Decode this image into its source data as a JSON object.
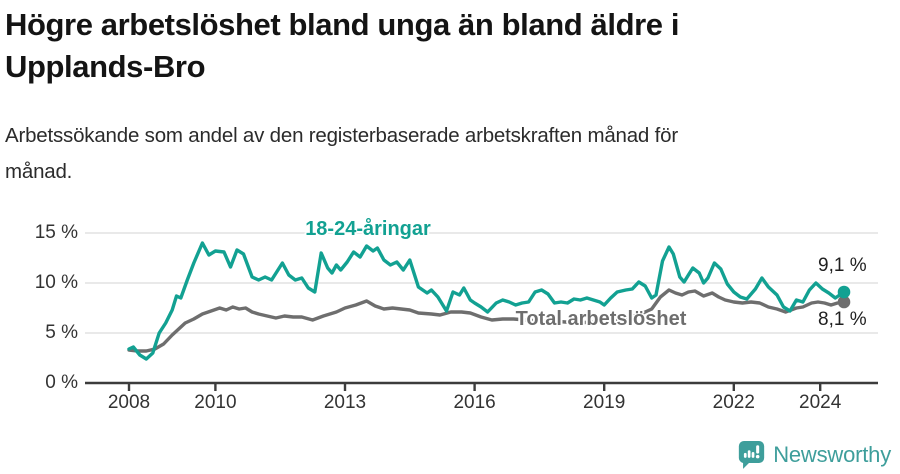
{
  "title": {
    "lines": [
      "Högre arbetslöshet bland unga än bland äldre i",
      "Upplands-Bro"
    ]
  },
  "subtitle": {
    "lines": [
      "Arbetssökande som andel av den registerbaserade arbetskraften månad för",
      "månad."
    ]
  },
  "chart_data": {
    "type": "line",
    "title": "Högre arbetslöshet bland unga än bland äldre i Upplands-Bro",
    "subtitle": "Arbetssökande som andel av den registerbaserade arbetskraften månad för månad.",
    "unit": "%",
    "grid": true,
    "legend_position": "inline-labels-on-lines",
    "x_axis": {
      "range": [
        2007.95,
        2025.35
      ],
      "ticks": [
        {
          "label": "2008",
          "year": 2008
        },
        {
          "label": "2010",
          "year": 2010
        },
        {
          "label": "2013",
          "year": 2013
        },
        {
          "label": "2016",
          "year": 2016
        },
        {
          "label": "2019",
          "year": 2019
        },
        {
          "label": "2022",
          "year": 2022
        },
        {
          "label": "2024",
          "year": 2024
        }
      ]
    },
    "y_axis": {
      "range": [
        0,
        15.5
      ],
      "ticks": [
        {
          "label": "0 %",
          "value": 0
        },
        {
          "label": "5 %",
          "value": 5
        },
        {
          "label": "10 %",
          "value": 10
        },
        {
          "label": "15 %",
          "value": 15
        }
      ]
    },
    "series": [
      {
        "name": "18-24-åringar",
        "color": "#12A192",
        "end_label": "9,1 %",
        "end_value": 9.1,
        "points": [
          [
            2008.0,
            3.4
          ],
          [
            2008.1,
            3.6
          ],
          [
            2008.25,
            2.8
          ],
          [
            2008.4,
            2.4
          ],
          [
            2008.55,
            3.0
          ],
          [
            2008.7,
            5.0
          ],
          [
            2008.85,
            6.0
          ],
          [
            2009.0,
            7.3
          ],
          [
            2009.1,
            8.7
          ],
          [
            2009.2,
            8.5
          ],
          [
            2009.35,
            10.3
          ],
          [
            2009.5,
            12.0
          ],
          [
            2009.7,
            14.0
          ],
          [
            2009.85,
            12.8
          ],
          [
            2010.0,
            13.2
          ],
          [
            2010.2,
            13.1
          ],
          [
            2010.35,
            11.6
          ],
          [
            2010.5,
            13.3
          ],
          [
            2010.65,
            12.9
          ],
          [
            2010.85,
            10.6
          ],
          [
            2011.0,
            10.3
          ],
          [
            2011.15,
            10.6
          ],
          [
            2011.3,
            10.3
          ],
          [
            2011.55,
            12.0
          ],
          [
            2011.7,
            10.8
          ],
          [
            2011.85,
            10.3
          ],
          [
            2012.0,
            10.5
          ],
          [
            2012.15,
            9.5
          ],
          [
            2012.3,
            9.1
          ],
          [
            2012.45,
            13.0
          ],
          [
            2012.6,
            11.5
          ],
          [
            2012.7,
            11.0
          ],
          [
            2012.8,
            11.8
          ],
          [
            2012.9,
            11.3
          ],
          [
            2013.05,
            12.1
          ],
          [
            2013.2,
            13.1
          ],
          [
            2013.35,
            12.6
          ],
          [
            2013.5,
            13.7
          ],
          [
            2013.65,
            13.2
          ],
          [
            2013.75,
            13.5
          ],
          [
            2013.9,
            12.3
          ],
          [
            2014.05,
            11.8
          ],
          [
            2014.2,
            12.1
          ],
          [
            2014.35,
            11.3
          ],
          [
            2014.5,
            12.3
          ],
          [
            2014.7,
            9.6
          ],
          [
            2014.9,
            9.0
          ],
          [
            2015.0,
            9.3
          ],
          [
            2015.15,
            8.6
          ],
          [
            2015.35,
            7.2
          ],
          [
            2015.5,
            9.1
          ],
          [
            2015.65,
            8.8
          ],
          [
            2015.75,
            9.5
          ],
          [
            2015.9,
            8.3
          ],
          [
            2016.0,
            8.0
          ],
          [
            2016.15,
            7.6
          ],
          [
            2016.3,
            7.1
          ],
          [
            2016.5,
            8.0
          ],
          [
            2016.65,
            8.3
          ],
          [
            2016.8,
            8.1
          ],
          [
            2016.95,
            7.8
          ],
          [
            2017.1,
            8.0
          ],
          [
            2017.25,
            8.1
          ],
          [
            2017.4,
            9.1
          ],
          [
            2017.55,
            9.3
          ],
          [
            2017.7,
            8.9
          ],
          [
            2017.85,
            8.0
          ],
          [
            2018.0,
            8.1
          ],
          [
            2018.15,
            8.0
          ],
          [
            2018.3,
            8.4
          ],
          [
            2018.45,
            8.3
          ],
          [
            2018.6,
            8.5
          ],
          [
            2018.75,
            8.3
          ],
          [
            2018.9,
            8.1
          ],
          [
            2019.0,
            7.8
          ],
          [
            2019.15,
            8.5
          ],
          [
            2019.3,
            9.1
          ],
          [
            2019.5,
            9.3
          ],
          [
            2019.65,
            9.4
          ],
          [
            2019.8,
            10.1
          ],
          [
            2019.95,
            9.7
          ],
          [
            2020.1,
            8.5
          ],
          [
            2020.2,
            8.8
          ],
          [
            2020.35,
            12.2
          ],
          [
            2020.5,
            13.6
          ],
          [
            2020.6,
            12.9
          ],
          [
            2020.75,
            10.6
          ],
          [
            2020.85,
            10.1
          ],
          [
            2020.95,
            10.8
          ],
          [
            2021.05,
            11.5
          ],
          [
            2021.2,
            11.0
          ],
          [
            2021.3,
            10.0
          ],
          [
            2021.4,
            10.5
          ],
          [
            2021.55,
            12.0
          ],
          [
            2021.7,
            11.4
          ],
          [
            2021.85,
            9.9
          ],
          [
            2022.0,
            9.1
          ],
          [
            2022.15,
            8.6
          ],
          [
            2022.3,
            8.4
          ],
          [
            2022.5,
            9.4
          ],
          [
            2022.65,
            10.5
          ],
          [
            2022.8,
            9.6
          ],
          [
            2023.0,
            8.8
          ],
          [
            2023.15,
            7.6
          ],
          [
            2023.3,
            7.2
          ],
          [
            2023.45,
            8.3
          ],
          [
            2023.6,
            8.1
          ],
          [
            2023.75,
            9.3
          ],
          [
            2023.9,
            10.0
          ],
          [
            2024.05,
            9.4
          ],
          [
            2024.2,
            9.0
          ],
          [
            2024.35,
            8.5
          ],
          [
            2024.55,
            9.1
          ]
        ]
      },
      {
        "name": "Total arbetslöshet",
        "color": "#6E6E6E",
        "end_label": "8,1 %",
        "end_value": 8.1,
        "points": [
          [
            2008.0,
            3.3
          ],
          [
            2008.2,
            3.2
          ],
          [
            2008.4,
            3.2
          ],
          [
            2008.6,
            3.4
          ],
          [
            2008.8,
            3.9
          ],
          [
            2009.0,
            4.8
          ],
          [
            2009.15,
            5.4
          ],
          [
            2009.3,
            6.0
          ],
          [
            2009.5,
            6.4
          ],
          [
            2009.7,
            6.9
          ],
          [
            2009.9,
            7.2
          ],
          [
            2010.1,
            7.5
          ],
          [
            2010.25,
            7.3
          ],
          [
            2010.4,
            7.6
          ],
          [
            2010.55,
            7.4
          ],
          [
            2010.7,
            7.5
          ],
          [
            2010.85,
            7.1
          ],
          [
            2011.0,
            6.9
          ],
          [
            2011.2,
            6.7
          ],
          [
            2011.4,
            6.5
          ],
          [
            2011.6,
            6.7
          ],
          [
            2011.8,
            6.6
          ],
          [
            2012.0,
            6.6
          ],
          [
            2012.25,
            6.3
          ],
          [
            2012.5,
            6.7
          ],
          [
            2012.8,
            7.1
          ],
          [
            2013.0,
            7.5
          ],
          [
            2013.25,
            7.8
          ],
          [
            2013.5,
            8.2
          ],
          [
            2013.7,
            7.7
          ],
          [
            2013.9,
            7.4
          ],
          [
            2014.1,
            7.5
          ],
          [
            2014.3,
            7.4
          ],
          [
            2014.5,
            7.3
          ],
          [
            2014.7,
            7.0
          ],
          [
            2015.0,
            6.9
          ],
          [
            2015.2,
            6.8
          ],
          [
            2015.45,
            7.1
          ],
          [
            2015.7,
            7.1
          ],
          [
            2015.9,
            7.0
          ],
          [
            2016.15,
            6.6
          ],
          [
            2016.4,
            6.3
          ],
          [
            2016.65,
            6.4
          ],
          [
            2016.9,
            6.4
          ],
          [
            2017.2,
            6.3
          ],
          [
            2017.5,
            6.2
          ],
          [
            2017.8,
            6.2
          ],
          [
            2018.1,
            6.1
          ],
          [
            2018.4,
            6.0
          ],
          [
            2018.7,
            6.1
          ],
          [
            2019.0,
            6.2
          ],
          [
            2019.3,
            6.4
          ],
          [
            2019.6,
            6.6
          ],
          [
            2019.85,
            6.9
          ],
          [
            2020.1,
            7.4
          ],
          [
            2020.3,
            8.6
          ],
          [
            2020.5,
            9.3
          ],
          [
            2020.65,
            9.0
          ],
          [
            2020.8,
            8.8
          ],
          [
            2020.95,
            9.1
          ],
          [
            2021.1,
            9.2
          ],
          [
            2021.3,
            8.7
          ],
          [
            2021.5,
            9.0
          ],
          [
            2021.65,
            8.6
          ],
          [
            2021.8,
            8.3
          ],
          [
            2022.0,
            8.1
          ],
          [
            2022.2,
            8.0
          ],
          [
            2022.4,
            8.1
          ],
          [
            2022.6,
            8.0
          ],
          [
            2022.8,
            7.6
          ],
          [
            2023.0,
            7.4
          ],
          [
            2023.2,
            7.1
          ],
          [
            2023.45,
            7.5
          ],
          [
            2023.6,
            7.6
          ],
          [
            2023.8,
            8.0
          ],
          [
            2023.95,
            8.1
          ],
          [
            2024.1,
            8.0
          ],
          [
            2024.25,
            7.8
          ],
          [
            2024.4,
            8.0
          ],
          [
            2024.55,
            8.1
          ]
        ]
      }
    ]
  },
  "footer": {
    "brand": "Newsworthy",
    "brand_color": "#3E9E9B"
  },
  "colors": {
    "young_line": "#12A192",
    "total_line": "#6E6E6E",
    "gridline": "#DCDCDC",
    "axis": "#3C3C3C"
  }
}
